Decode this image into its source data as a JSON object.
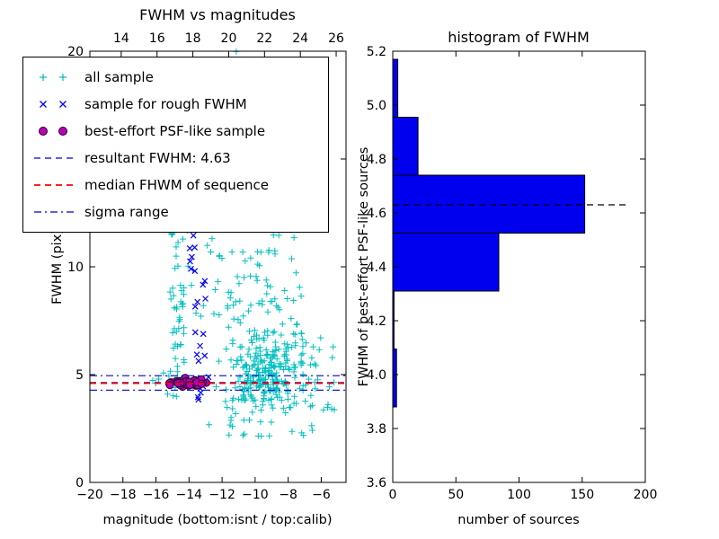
{
  "figure": {
    "background": "#ffffff",
    "axis_color": "#000000"
  },
  "legend": {
    "items": [
      {
        "marker": "plus",
        "color": "#00bfbf",
        "label": "all sample"
      },
      {
        "marker": "x",
        "color": "#0000ff",
        "label": "sample for rough FWHM"
      },
      {
        "marker": "circle",
        "color": "#b800b8",
        "edge": "#2a002a",
        "label": "best-effort PSF-like sample"
      },
      {
        "marker": "dashed-line",
        "color": "#0000cc",
        "label": "resultant FWHM: 4.63"
      },
      {
        "marker": "dashed-line",
        "color": "#ff0000",
        "label": "median FHWM of sequence"
      },
      {
        "marker": "dashdot-line",
        "color": "#0000cc",
        "label": "sigma range"
      }
    ]
  },
  "chart_data": [
    {
      "type": "scatter",
      "title": "FWHM vs magnitudes",
      "xlabel": "magnitude (bottom:isnt / top:calib)",
      "ylabel": "FWHM (pix)",
      "xlim": [
        -20,
        -4.5
      ],
      "ylim": [
        0,
        20
      ],
      "xticks": [
        -20,
        -18,
        -16,
        -14,
        -12,
        -10,
        -8,
        -6
      ],
      "yticks": [
        0,
        5,
        10,
        15,
        20
      ],
      "top_axis": {
        "lim": [
          12.25,
          26.55
        ],
        "ticks": [
          14,
          16,
          18,
          20,
          22,
          24,
          26
        ]
      },
      "series": [
        {
          "name": "all sample",
          "marker": "plus",
          "color": "#00bfbf",
          "point_clusters": [
            {
              "kind": "uniform",
              "x0": -15.15,
              "x1": -14.3,
              "y0": 3.9,
              "y1": 13.3,
              "n": 55
            },
            {
              "kind": "gauss",
              "cx": -9.4,
              "cy": 4.9,
              "sx": 1.05,
              "sy": 0.75,
              "n": 190
            },
            {
              "kind": "gauss",
              "cx": -9.9,
              "cy": 8.0,
              "sx": 1.3,
              "sy": 2.0,
              "n": 80
            },
            {
              "kind": "uniform",
              "x0": -14.6,
              "x1": -7.6,
              "y0": 5.5,
              "y1": 20.0,
              "n": 95
            },
            {
              "kind": "uniform",
              "x0": -12.8,
              "x1": -6.3,
              "y0": 2.0,
              "y1": 4.6,
              "n": 42
            },
            {
              "kind": "gauss",
              "cx": -7.6,
              "cy": 5.3,
              "sx": 0.8,
              "sy": 1.1,
              "n": 35
            },
            {
              "kind": "uniform",
              "x0": -6.6,
              "x1": -5.1,
              "y0": 3.3,
              "y1": 6.6,
              "n": 12
            },
            {
              "kind": "uniform",
              "x0": -16.3,
              "x1": -15.2,
              "y0": 4.0,
              "y1": 5.2,
              "n": 6
            }
          ]
        },
        {
          "name": "sample for rough FWHM",
          "marker": "x",
          "color": "#0000ff",
          "point_clusters": [
            {
              "kind": "uniform",
              "x0": -14.05,
              "x1": -13.6,
              "y0": 9.6,
              "y1": 12.6,
              "n": 8
            },
            {
              "kind": "uniform",
              "x0": -13.75,
              "x1": -12.95,
              "y0": 4.5,
              "y1": 9.6,
              "n": 13
            },
            {
              "kind": "gauss",
              "cx": -13.15,
              "cy": 4.4,
              "sx": 0.18,
              "sy": 0.3,
              "n": 5
            },
            {
              "kind": "uniform",
              "x0": -13.5,
              "x1": -13.1,
              "y0": 3.4,
              "y1": 4.0,
              "n": 2
            }
          ]
        },
        {
          "name": "best-effort PSF-like sample",
          "marker": "circle",
          "color": "#b800b8",
          "edge": "#2a002a",
          "point_clusters": [
            {
              "kind": "gauss",
              "cx": -14.05,
              "cy": 4.62,
              "sx": 0.5,
              "sy": 0.09,
              "n": 40
            },
            {
              "kind": "uniform",
              "x0": -15.25,
              "x1": -13.0,
              "y0": 4.45,
              "y1": 4.8,
              "n": 12
            }
          ]
        }
      ],
      "hlines": [
        {
          "name": "sigma range upper",
          "y": 4.95,
          "color": "#0000cc",
          "style": "dashdot",
          "lw": 1.1
        },
        {
          "name": "sigma range lower",
          "y": 4.28,
          "color": "#0000cc",
          "style": "dashdot",
          "lw": 1.1
        },
        {
          "name": "resultant FWHM",
          "y": 4.63,
          "color": "#0000cc",
          "style": "dashed",
          "lw": 1.2
        },
        {
          "name": "median FHWM of sequence",
          "y": 4.6,
          "color": "#ff0000",
          "style": "dashed",
          "lw": 1.8
        }
      ]
    },
    {
      "type": "histogram-horizontal",
      "title": "histogram of FWHM",
      "xlabel": "number of sources",
      "ylabel": "FWHM of best-effort PSF-like sources",
      "xlim": [
        0,
        200
      ],
      "ylim": [
        3.6,
        5.2
      ],
      "xticks": [
        0,
        50,
        100,
        150,
        200
      ],
      "yticks": [
        3.6,
        3.8,
        4.0,
        4.2,
        4.4,
        4.6,
        4.8,
        5.0,
        5.2
      ],
      "bin_edges": [
        3.88,
        4.095,
        4.31,
        4.525,
        4.74,
        4.955,
        5.17
      ],
      "counts": [
        3,
        1,
        84,
        152,
        20,
        4
      ],
      "bar_color": "#0000ee",
      "bar_edge": "#000000",
      "dashed_line": {
        "y": 4.63,
        "x_start": 0,
        "x_end": 185,
        "color": "#000000"
      }
    }
  ]
}
